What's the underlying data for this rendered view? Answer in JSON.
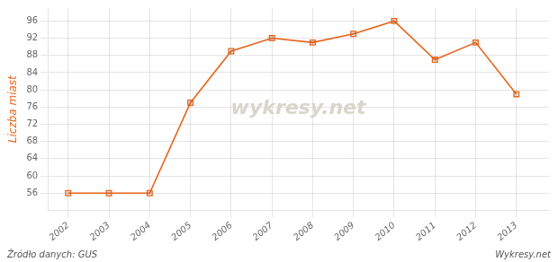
{
  "chart_data": {
    "type": "line",
    "x": [
      2002,
      2003,
      2004,
      2005,
      2006,
      2007,
      2008,
      2009,
      2010,
      2011,
      2012,
      2013
    ],
    "values": [
      56,
      56,
      56,
      77,
      89,
      92,
      91,
      93,
      96,
      87,
      91,
      79
    ],
    "color": "#e8631a",
    "marker": "square",
    "ylabel": "Liczba miast",
    "xlim": [
      2001.5,
      2013.8
    ],
    "xticks": [
      2002,
      2003,
      2004,
      2005,
      2006,
      2007,
      2008,
      2009,
      2010,
      2011,
      2012,
      2013
    ],
    "ylim": [
      52,
      99
    ],
    "yticks": [
      56,
      60,
      64,
      68,
      72,
      76,
      80,
      84,
      88,
      92,
      96
    ],
    "grid": true,
    "annotations": [
      "wykresy.net",
      "Źródło danych: GUS",
      "Wykresy.net"
    ]
  }
}
